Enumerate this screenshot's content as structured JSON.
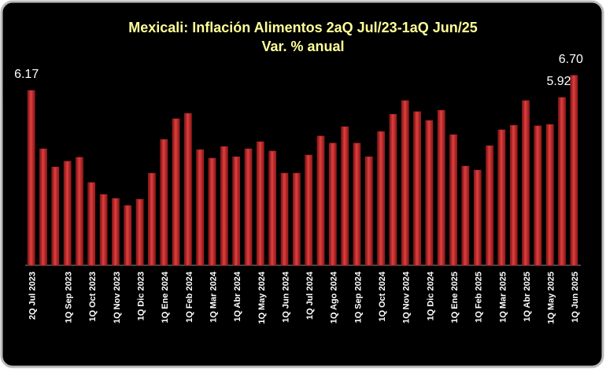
{
  "chart_data": {
    "type": "bar",
    "title": "Mexicali: Inflación Alimentos 2aQ Jul/23-1aQ Jun/25",
    "subtitle": "Var. % anual",
    "categories": [
      "2Q Jul 2023",
      null,
      null,
      "1Q Sep 2023",
      null,
      "1Q Oct 2023",
      null,
      "1Q Nov 2023",
      null,
      "1Q Dic 2023",
      null,
      "1Q Ene 2024",
      null,
      "1Q Feb 2024",
      null,
      "1Q Mar 2024",
      null,
      "1Q Abr 2024",
      null,
      "1Q May 2024",
      null,
      "1Q Jun 2024",
      null,
      "1Q Jul 2024",
      null,
      "1Q Ago 2024",
      null,
      "1Q Sep 2024",
      null,
      "1Q Oct 2024",
      null,
      "1Q Nov 2024",
      null,
      "1Q Dic 2024",
      null,
      "1Q Ene 2025",
      null,
      "1Q Feb 2025",
      null,
      "1Q Mar 2025",
      null,
      "1Q Abr 2025",
      null,
      "1Q May 2025",
      null,
      "1Q Jun 2025"
    ],
    "values": [
      6.17,
      4.11,
      3.47,
      3.67,
      3.81,
      2.92,
      2.5,
      2.36,
      2.11,
      2.33,
      3.25,
      4.44,
      5.17,
      5.36,
      4.08,
      3.78,
      4.19,
      3.83,
      4.11,
      4.36,
      4.03,
      3.25,
      3.25,
      3.89,
      4.56,
      4.31,
      4.89,
      4.31,
      3.83,
      4.72,
      5.33,
      5.81,
      5.42,
      5.11,
      5.47,
      4.61,
      3.5,
      3.36,
      4.22,
      4.78,
      4.94,
      5.81,
      4.92,
      4.97,
      5.92,
      6.7
    ],
    "value_labels": [
      "6.17",
      null,
      null,
      null,
      null,
      null,
      null,
      null,
      null,
      null,
      null,
      null,
      null,
      null,
      null,
      null,
      null,
      null,
      null,
      null,
      null,
      null,
      null,
      null,
      null,
      null,
      null,
      null,
      null,
      null,
      null,
      null,
      null,
      null,
      null,
      null,
      null,
      null,
      null,
      null,
      null,
      null,
      null,
      null,
      "5.92",
      "6.70"
    ],
    "color": "#c0282a",
    "ylim": [
      0,
      7
    ]
  }
}
